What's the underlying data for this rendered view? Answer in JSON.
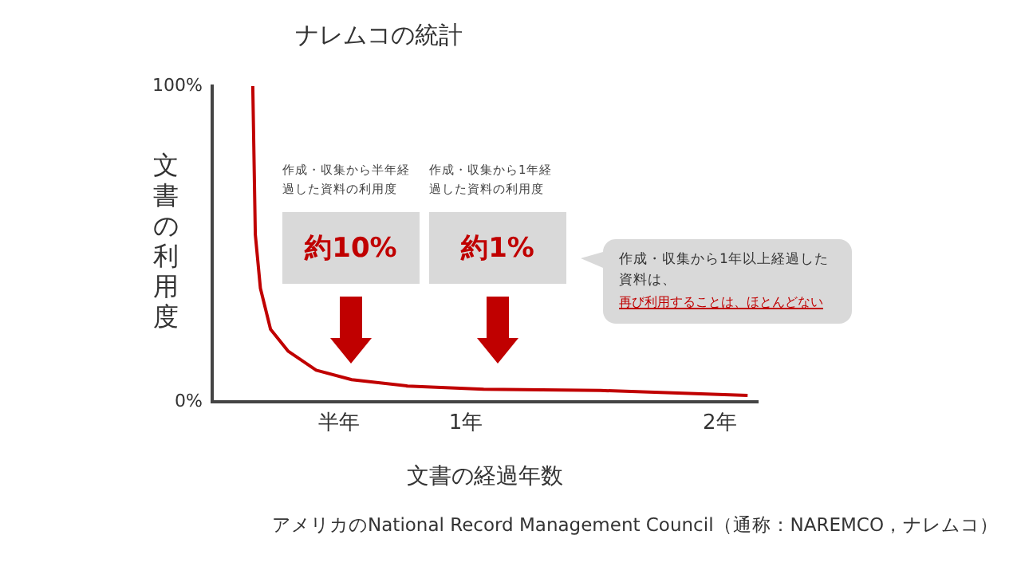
{
  "chart_data": {
    "type": "line",
    "title": "ナレムコの統計",
    "xlabel": "文書の経過年数",
    "ylabel": "文書の利用度",
    "x": [
      0.16,
      0.17,
      0.19,
      0.23,
      0.3,
      0.41,
      0.55,
      0.77,
      1.07,
      1.53,
      2.11
    ],
    "series": [
      {
        "color": "#c00000",
        "values": [
          100,
          53,
          36,
          23,
          16,
          10,
          7,
          5,
          4,
          3.6,
          2
        ]
      }
    ],
    "xlim": [
      0,
      2.15
    ],
    "xticks": [
      {
        "value": 0.5,
        "label": "半年"
      },
      {
        "value": 1,
        "label": "1年"
      },
      {
        "value": 2,
        "label": "2年"
      }
    ],
    "ylim": [
      0,
      100
    ],
    "yticks": [
      {
        "value": 0,
        "label": "0%"
      },
      {
        "value": 100,
        "label": "100%"
      }
    ],
    "grid": false,
    "legend": false,
    "marker": "none",
    "line_style": "solid",
    "annotations": [
      "作成・収集から半年経過した資料の利用度",
      "約10%",
      "作成・収集から1年経過した資料の利用度",
      "約1%",
      "作成・収集から1年以上経過した資料は、",
      "再び利用することは、ほとんどない",
      "アメリカのNational Record Management Council（通称：NAREMCO，ナレムコ）"
    ]
  }
}
